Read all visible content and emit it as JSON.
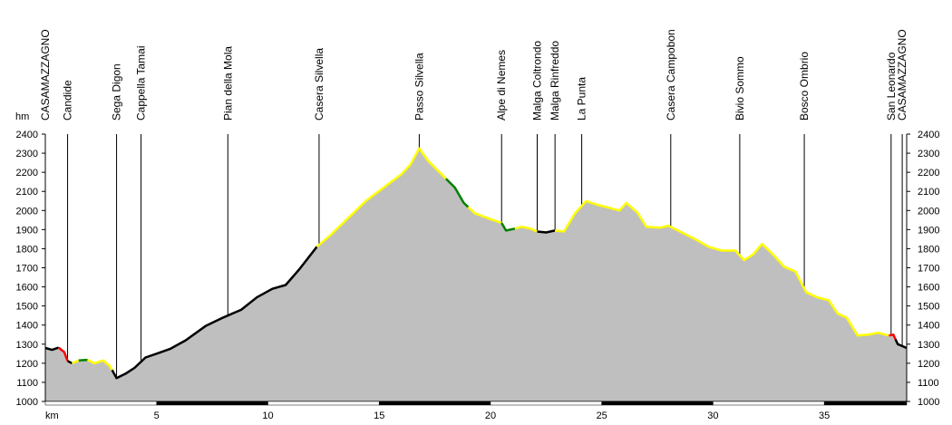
{
  "chart_data": {
    "type": "area",
    "xlabel": "km",
    "ylabel": "hm",
    "ylabel_right": "",
    "xlim": [
      0,
      38.7
    ],
    "ylim": [
      1000,
      2400
    ],
    "yticks": [
      1000,
      1100,
      1200,
      1300,
      1400,
      1500,
      1600,
      1700,
      1800,
      1900,
      2000,
      2100,
      2200,
      2300,
      2400
    ],
    "xticks": [
      5,
      10,
      15,
      20,
      25,
      30,
      35
    ],
    "grid": false,
    "fill_color": "#bfbfbf",
    "profile": [
      {
        "x": 0,
        "y": 1280
      },
      {
        "x": 0.3,
        "y": 1270
      },
      {
        "x": 0.6,
        "y": 1282
      },
      {
        "x": 0.85,
        "y": 1258
      },
      {
        "x": 1.0,
        "y": 1212
      },
      {
        "x": 1.2,
        "y": 1200
      },
      {
        "x": 1.5,
        "y": 1215
      },
      {
        "x": 1.9,
        "y": 1218
      },
      {
        "x": 2.2,
        "y": 1200
      },
      {
        "x": 2.6,
        "y": 1215
      },
      {
        "x": 2.9,
        "y": 1185
      },
      {
        "x": 3.2,
        "y": 1122
      },
      {
        "x": 3.6,
        "y": 1145
      },
      {
        "x": 4.0,
        "y": 1175
      },
      {
        "x": 4.5,
        "y": 1230
      },
      {
        "x": 5.0,
        "y": 1250
      },
      {
        "x": 5.6,
        "y": 1275
      },
      {
        "x": 6.3,
        "y": 1320
      },
      {
        "x": 7.2,
        "y": 1395
      },
      {
        "x": 8.0,
        "y": 1440
      },
      {
        "x": 8.8,
        "y": 1480
      },
      {
        "x": 9.5,
        "y": 1545
      },
      {
        "x": 10.2,
        "y": 1590
      },
      {
        "x": 10.8,
        "y": 1610
      },
      {
        "x": 11.4,
        "y": 1690
      },
      {
        "x": 12.2,
        "y": 1810
      },
      {
        "x": 12.8,
        "y": 1870
      },
      {
        "x": 13.6,
        "y": 1960
      },
      {
        "x": 14.4,
        "y": 2050
      },
      {
        "x": 15.2,
        "y": 2120
      },
      {
        "x": 16.0,
        "y": 2190
      },
      {
        "x": 16.4,
        "y": 2240
      },
      {
        "x": 16.8,
        "y": 2325
      },
      {
        "x": 17.2,
        "y": 2260
      },
      {
        "x": 17.8,
        "y": 2190
      },
      {
        "x": 18.4,
        "y": 2120
      },
      {
        "x": 18.8,
        "y": 2040
      },
      {
        "x": 19.3,
        "y": 1985
      },
      {
        "x": 20.0,
        "y": 1955
      },
      {
        "x": 20.5,
        "y": 1935
      },
      {
        "x": 20.7,
        "y": 1895
      },
      {
        "x": 21.1,
        "y": 1905
      },
      {
        "x": 21.4,
        "y": 1915
      },
      {
        "x": 21.8,
        "y": 1905
      },
      {
        "x": 22.1,
        "y": 1890
      },
      {
        "x": 22.5,
        "y": 1885
      },
      {
        "x": 22.9,
        "y": 1895
      },
      {
        "x": 23.3,
        "y": 1890
      },
      {
        "x": 23.8,
        "y": 1985
      },
      {
        "x": 24.3,
        "y": 2050
      },
      {
        "x": 24.8,
        "y": 2030
      },
      {
        "x": 25.3,
        "y": 2015
      },
      {
        "x": 25.8,
        "y": 2000
      },
      {
        "x": 26.1,
        "y": 2040
      },
      {
        "x": 26.6,
        "y": 1990
      },
      {
        "x": 27.0,
        "y": 1915
      },
      {
        "x": 27.6,
        "y": 1910
      },
      {
        "x": 28.0,
        "y": 1920
      },
      {
        "x": 28.6,
        "y": 1885
      },
      {
        "x": 29.2,
        "y": 1850
      },
      {
        "x": 29.8,
        "y": 1810
      },
      {
        "x": 30.4,
        "y": 1790
      },
      {
        "x": 31.0,
        "y": 1790
      },
      {
        "x": 31.4,
        "y": 1740
      },
      {
        "x": 31.8,
        "y": 1770
      },
      {
        "x": 32.2,
        "y": 1825
      },
      {
        "x": 32.7,
        "y": 1770
      },
      {
        "x": 33.2,
        "y": 1705
      },
      {
        "x": 33.7,
        "y": 1680
      },
      {
        "x": 34.2,
        "y": 1570
      },
      {
        "x": 34.7,
        "y": 1545
      },
      {
        "x": 35.2,
        "y": 1530
      },
      {
        "x": 35.6,
        "y": 1460
      },
      {
        "x": 36.0,
        "y": 1440
      },
      {
        "x": 36.5,
        "y": 1345
      },
      {
        "x": 37.0,
        "y": 1350
      },
      {
        "x": 37.4,
        "y": 1360
      },
      {
        "x": 37.9,
        "y": 1345
      },
      {
        "x": 38.1,
        "y": 1350
      },
      {
        "x": 38.3,
        "y": 1300
      },
      {
        "x": 38.7,
        "y": 1280
      }
    ],
    "segments": [
      {
        "from": 0,
        "to": 0.6,
        "color": "#000000"
      },
      {
        "from": 0.6,
        "to": 1.0,
        "color": "#ff0000"
      },
      {
        "from": 1.0,
        "to": 1.2,
        "color": "#000000"
      },
      {
        "from": 1.2,
        "to": 1.5,
        "color": "#ffff00"
      },
      {
        "from": 1.5,
        "to": 1.9,
        "color": "#008000"
      },
      {
        "from": 1.9,
        "to": 3.0,
        "color": "#ffff00"
      },
      {
        "from": 3.0,
        "to": 12.2,
        "color": "#000000"
      },
      {
        "from": 12.2,
        "to": 18.0,
        "color": "#ffff00"
      },
      {
        "from": 18.0,
        "to": 19.0,
        "color": "#008000"
      },
      {
        "from": 19.0,
        "to": 20.5,
        "color": "#ffff00"
      },
      {
        "from": 20.5,
        "to": 21.1,
        "color": "#008000"
      },
      {
        "from": 21.1,
        "to": 22.1,
        "color": "#ffff00"
      },
      {
        "from": 22.1,
        "to": 22.9,
        "color": "#000000"
      },
      {
        "from": 22.9,
        "to": 37.9,
        "color": "#ffff00"
      },
      {
        "from": 37.9,
        "to": 38.2,
        "color": "#ff0000"
      },
      {
        "from": 38.2,
        "to": 38.7,
        "color": "#000000"
      }
    ],
    "distance_bar": [
      {
        "from": 0,
        "to": 5,
        "color": "#ffffff"
      },
      {
        "from": 5,
        "to": 10,
        "color": "#000000"
      },
      {
        "from": 10,
        "to": 15,
        "color": "#ffffff"
      },
      {
        "from": 15,
        "to": 20,
        "color": "#000000"
      },
      {
        "from": 20,
        "to": 25,
        "color": "#ffffff"
      },
      {
        "from": 25,
        "to": 30,
        "color": "#000000"
      },
      {
        "from": 30,
        "to": 35,
        "color": "#ffffff"
      },
      {
        "from": 35,
        "to": 38.7,
        "color": "#000000"
      }
    ],
    "waypoints": [
      {
        "name": "CASAMAZZAGNO",
        "x": 0
      },
      {
        "name": "Candide",
        "x": 1.0
      },
      {
        "name": "Sega Digon",
        "x": 3.2
      },
      {
        "name": "Cappella Tamai",
        "x": 4.3
      },
      {
        "name": "Pian della Mola",
        "x": 8.2
      },
      {
        "name": "Casera Silvella",
        "x": 12.3
      },
      {
        "name": "Passo Silvella",
        "x": 16.8
      },
      {
        "name": "Alpe di Nemes",
        "x": 20.5
      },
      {
        "name": "Malga Coltrondo",
        "x": 22.1
      },
      {
        "name": "Malga Rinfreddo",
        "x": 22.9
      },
      {
        "name": "La Punta",
        "x": 24.1
      },
      {
        "name": "Casera Campobon",
        "x": 28.1
      },
      {
        "name": "Bivio Sommo",
        "x": 31.2
      },
      {
        "name": "Bosco Ombrio",
        "x": 34.1
      },
      {
        "name": "San Leonardo",
        "x": 38.0
      },
      {
        "name": "CASAMAZZAGNO",
        "x": 38.5
      }
    ]
  }
}
